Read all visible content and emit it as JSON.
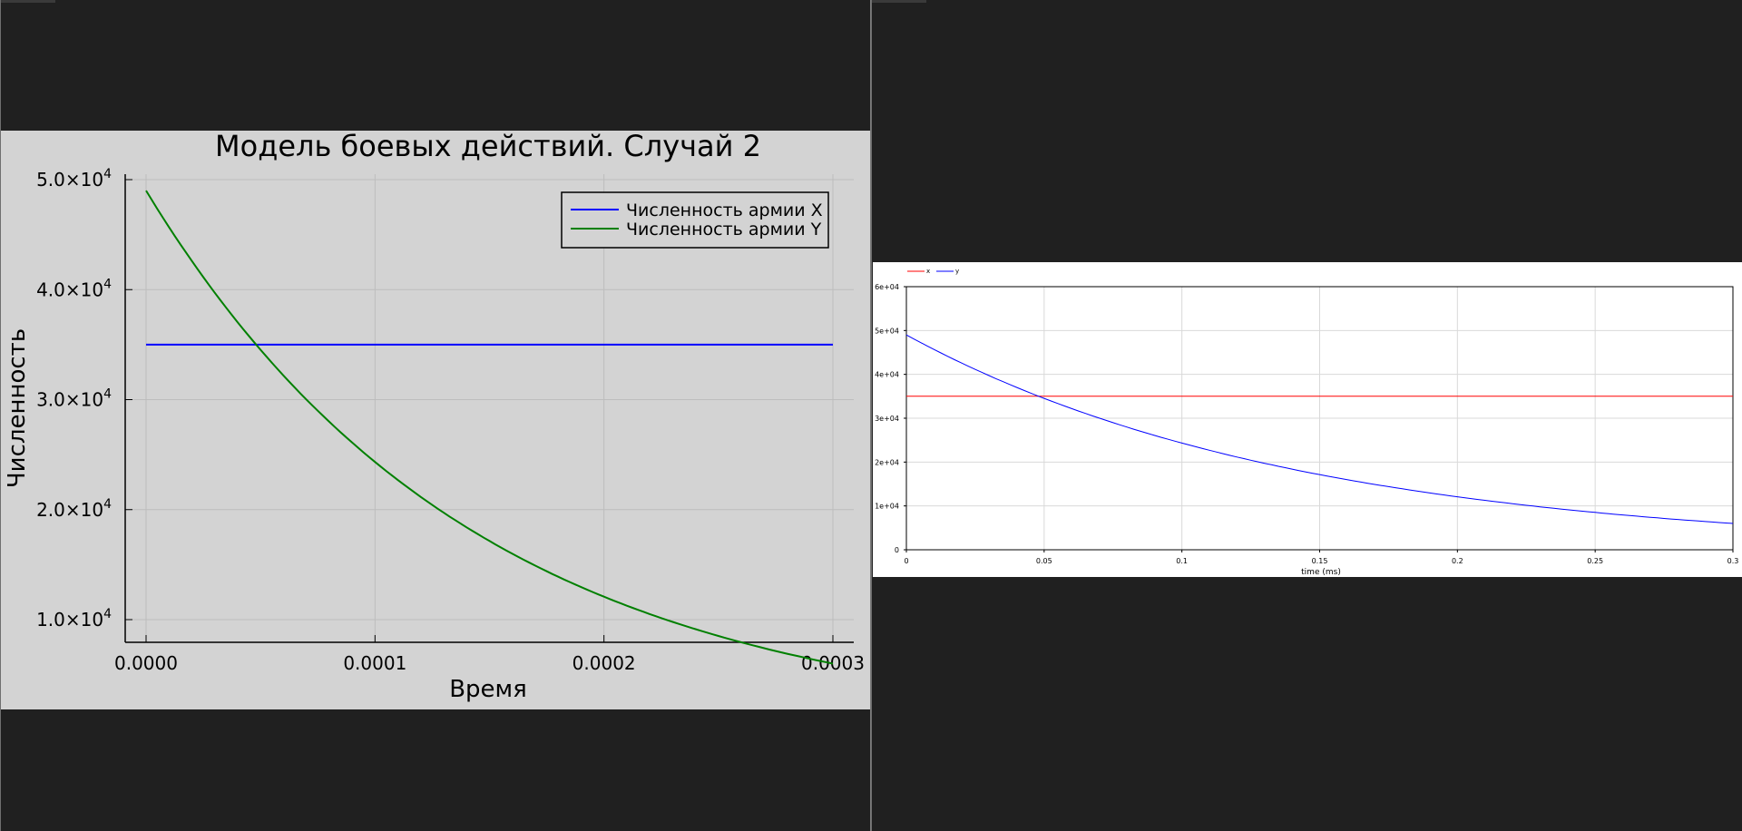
{
  "left_plot": {
    "title": "Модель боевых действий. Случай 2",
    "xlabel": "Время",
    "ylabel": "Численность",
    "x_ticks": [
      "0.0000",
      "0.0001",
      "0.0002",
      "0.0003"
    ],
    "y_ticks": [
      {
        "mant": "1.0×10",
        "exp": "4"
      },
      {
        "mant": "2.0×10",
        "exp": "4"
      },
      {
        "mant": "3.0×10",
        "exp": "4"
      },
      {
        "mant": "4.0×10",
        "exp": "4"
      },
      {
        "mant": "5.0×10",
        "exp": "4"
      }
    ],
    "legend": [
      "Численность армии X",
      "Численность армии Y"
    ],
    "colors": {
      "x": "#0000ff",
      "y": "#008000",
      "background": "#d3d3d3"
    }
  },
  "right_plot": {
    "xlabel": "time (ms)",
    "x_ticks": [
      "0",
      "0.05",
      "0.1",
      "0.15",
      "0.2",
      "0.25",
      "0.3"
    ],
    "y_ticks": [
      "0",
      "1e+04",
      "2e+04",
      "3e+04",
      "4e+04",
      "5e+04",
      "6e+04"
    ],
    "legend": [
      "x",
      "y"
    ],
    "colors": {
      "x": "#ff0000",
      "y": "#0000ff",
      "background": "#ffffff"
    }
  },
  "chart_data": [
    {
      "type": "line",
      "title": "Модель боевых действий. Случай 2",
      "xlabel": "Время",
      "ylabel": "Численность",
      "xlim": [
        0,
        0.0003
      ],
      "ylim": [
        5000,
        50000
      ],
      "grid": true,
      "legend_position": "top-right",
      "x": [
        0,
        5e-05,
        0.0001,
        0.00015,
        0.0002,
        0.00025,
        0.0003
      ],
      "series": [
        {
          "name": "Численность армии X",
          "values": [
            35000,
            35000,
            35000,
            35000,
            35000,
            35000,
            35000
          ]
        },
        {
          "name": "Численность армии Y",
          "values": [
            49000,
            34500,
            24300,
            17100,
            12100,
            8500,
            6000
          ]
        }
      ]
    },
    {
      "type": "line",
      "xlabel": "time (ms)",
      "xlim": [
        0,
        0.3
      ],
      "ylim": [
        0,
        60000
      ],
      "grid": true,
      "legend_position": "top-left",
      "x": [
        0,
        0.05,
        0.1,
        0.15,
        0.2,
        0.25,
        0.3
      ],
      "series": [
        {
          "name": "x",
          "values": [
            35000,
            35000,
            35000,
            35000,
            35000,
            35000,
            35000
          ]
        },
        {
          "name": "y",
          "values": [
            49000,
            34500,
            24300,
            17100,
            12100,
            8500,
            6000
          ]
        }
      ]
    }
  ]
}
